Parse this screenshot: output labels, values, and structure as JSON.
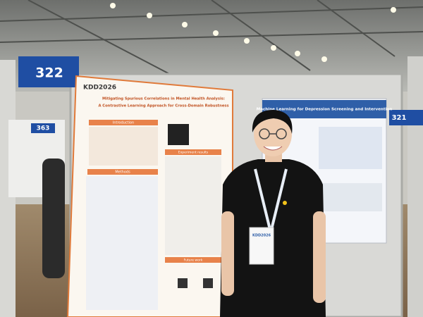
{
  "signs": {
    "left": "322",
    "middle": "363",
    "right": "321"
  },
  "left_poster": {
    "logo": "KDD2026",
    "title_lines": [
      "Mitigating Spurious Correlations in Mental Health Analysis:",
      "A Contrastive Learning Approach for Cross-Domain Robustness"
    ],
    "sections": [
      "Introduction",
      "Methods",
      "Experiment results",
      "Future work"
    ]
  },
  "right_poster": {
    "title_lines": [
      "Machine Learning for Depression Screening and Intervention"
    ]
  },
  "badge": "KDD2026"
}
